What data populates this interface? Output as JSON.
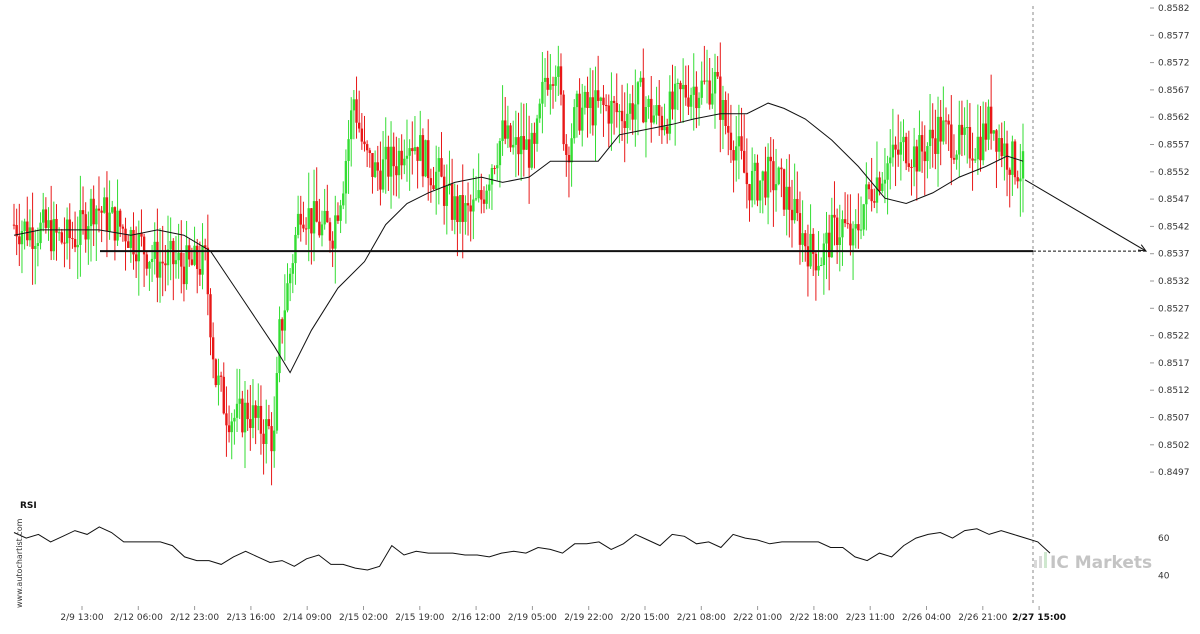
{
  "chart_data": {
    "type": "candlestick",
    "instrument_note": "",
    "price_axis": {
      "ticks": [
        "0.8582",
        "0.8577",
        "0.8572",
        "0.8567",
        "0.8562",
        "0.8557",
        "0.8552",
        "0.8547",
        "0.8542",
        "0.8537",
        "0.8532",
        "0.8527",
        "0.8522",
        "0.8517",
        "0.8512",
        "0.8507",
        "0.8502",
        "0.8497"
      ],
      "range": [
        0.8494,
        0.8582
      ]
    },
    "time_axis": {
      "ticks": [
        "2/9 13:00",
        "2/12 06:00",
        "2/12 23:00",
        "2/13 16:00",
        "2/14 09:00",
        "2/15 02:00",
        "2/15 19:00",
        "2/16 12:00",
        "2/19 05:00",
        "2/19 22:00",
        "2/20 15:00",
        "2/21 08:00",
        "2/22 01:00",
        "2/22 18:00",
        "2/23 11:00",
        "2/26 04:00",
        "2/26 21:00",
        "2/27 15:00"
      ],
      "current_label": "2/27 15:00"
    },
    "support_level": 0.8536,
    "forecast_target": 0.8536,
    "moving_average_path": [
      [
        0,
        0.8539
      ],
      [
        5,
        0.854
      ],
      [
        10,
        0.854
      ],
      [
        16,
        0.854
      ],
      [
        22,
        0.8539
      ],
      [
        27,
        0.854
      ],
      [
        32,
        0.8539
      ],
      [
        37,
        0.8536
      ],
      [
        43,
        0.8527
      ],
      [
        49,
        0.8518
      ],
      [
        52,
        0.8513
      ],
      [
        56,
        0.8521
      ],
      [
        61,
        0.8529
      ],
      [
        66,
        0.8534
      ],
      [
        70,
        0.8541
      ],
      [
        74,
        0.8545
      ],
      [
        78,
        0.8547
      ],
      [
        83,
        0.8549
      ],
      [
        88,
        0.855
      ],
      [
        92,
        0.8549
      ],
      [
        97,
        0.855
      ],
      [
        101,
        0.8553
      ],
      [
        106,
        0.8553
      ],
      [
        110,
        0.8553
      ],
      [
        114,
        0.8558
      ],
      [
        119,
        0.8559
      ],
      [
        124,
        0.856
      ],
      [
        128,
        0.8561
      ],
      [
        133,
        0.8562
      ],
      [
        138,
        0.8562
      ],
      [
        142,
        0.8564
      ],
      [
        145,
        0.8563
      ],
      [
        149,
        0.8561
      ],
      [
        154,
        0.8557
      ],
      [
        159,
        0.8552
      ],
      [
        164,
        0.8546
      ],
      [
        168,
        0.8545
      ],
      [
        173,
        0.8547
      ],
      [
        178,
        0.855
      ],
      [
        183,
        0.8552
      ],
      [
        187,
        0.8554
      ],
      [
        190,
        0.8553
      ]
    ],
    "price_path": [
      [
        0,
        0.8541
      ],
      [
        3,
        0.854
      ],
      [
        6,
        0.854
      ],
      [
        9,
        0.8538
      ],
      [
        12,
        0.8539
      ],
      [
        15,
        0.8545
      ],
      [
        18,
        0.8542
      ],
      [
        21,
        0.854
      ],
      [
        24,
        0.8537
      ],
      [
        27,
        0.8534
      ],
      [
        30,
        0.8534
      ],
      [
        33,
        0.8533
      ],
      [
        36,
        0.8534
      ],
      [
        38,
        0.8512
      ],
      [
        40,
        0.8506
      ],
      [
        42,
        0.8504
      ],
      [
        44,
        0.8506
      ],
      [
        46,
        0.8503
      ],
      [
        48,
        0.8502
      ],
      [
        49,
        0.85
      ],
      [
        50,
        0.852
      ],
      [
        52,
        0.8532
      ],
      [
        54,
        0.8545
      ],
      [
        56,
        0.8542
      ],
      [
        58,
        0.854
      ],
      [
        60,
        0.854
      ],
      [
        62,
        0.855
      ],
      [
        64,
        0.8565
      ],
      [
        66,
        0.8554
      ],
      [
        68,
        0.8551
      ],
      [
        70,
        0.8552
      ],
      [
        72,
        0.8553
      ],
      [
        74,
        0.8558
      ],
      [
        76,
        0.8556
      ],
      [
        78,
        0.8552
      ],
      [
        80,
        0.855
      ],
      [
        82,
        0.8545
      ],
      [
        84,
        0.8543
      ],
      [
        86,
        0.8543
      ],
      [
        88,
        0.8546
      ],
      [
        90,
        0.8553
      ],
      [
        92,
        0.8558
      ],
      [
        94,
        0.8555
      ],
      [
        96,
        0.8556
      ],
      [
        98,
        0.8554
      ],
      [
        100,
        0.8569
      ],
      [
        102,
        0.8572
      ],
      [
        104,
        0.8555
      ],
      [
        106,
        0.8562
      ],
      [
        108,
        0.8563
      ],
      [
        110,
        0.8563
      ],
      [
        112,
        0.8563
      ],
      [
        114,
        0.8562
      ],
      [
        116,
        0.8563
      ],
      [
        118,
        0.8565
      ],
      [
        120,
        0.8562
      ],
      [
        122,
        0.8561
      ],
      [
        124,
        0.8563
      ],
      [
        126,
        0.8566
      ],
      [
        128,
        0.8567
      ],
      [
        130,
        0.8567
      ],
      [
        132,
        0.8568
      ],
      [
        134,
        0.856
      ],
      [
        136,
        0.8556
      ],
      [
        138,
        0.8549
      ],
      [
        140,
        0.8549
      ],
      [
        142,
        0.855
      ],
      [
        144,
        0.8549
      ],
      [
        146,
        0.8545
      ],
      [
        148,
        0.854
      ],
      [
        150,
        0.8536
      ],
      [
        152,
        0.8535
      ],
      [
        154,
        0.8539
      ],
      [
        156,
        0.8541
      ],
      [
        158,
        0.8537
      ],
      [
        160,
        0.8545
      ],
      [
        162,
        0.8549
      ],
      [
        164,
        0.8552
      ],
      [
        166,
        0.8554
      ],
      [
        168,
        0.8556
      ],
      [
        170,
        0.8554
      ],
      [
        172,
        0.8556
      ],
      [
        174,
        0.8559
      ],
      [
        176,
        0.8558
      ],
      [
        178,
        0.8556
      ],
      [
        180,
        0.8556
      ],
      [
        182,
        0.8557
      ],
      [
        184,
        0.8561
      ],
      [
        186,
        0.8556
      ],
      [
        188,
        0.8553
      ],
      [
        190,
        0.8551
      ]
    ],
    "rsi": {
      "title": "RSI",
      "ticks": [
        "60",
        "40"
      ],
      "range": [
        35,
        75
      ],
      "path": [
        [
          0,
          63
        ],
        [
          2,
          60
        ],
        [
          4,
          62
        ],
        [
          6,
          58
        ],
        [
          8,
          61
        ],
        [
          10,
          64
        ],
        [
          12,
          62
        ],
        [
          14,
          66
        ],
        [
          16,
          63
        ],
        [
          18,
          58
        ],
        [
          20,
          58
        ],
        [
          22,
          58
        ],
        [
          24,
          58
        ],
        [
          26,
          56
        ],
        [
          28,
          50
        ],
        [
          30,
          48
        ],
        [
          32,
          48
        ],
        [
          34,
          46
        ],
        [
          36,
          50
        ],
        [
          38,
          53
        ],
        [
          40,
          50
        ],
        [
          42,
          47
        ],
        [
          44,
          48
        ],
        [
          46,
          45
        ],
        [
          48,
          49
        ],
        [
          50,
          51
        ],
        [
          52,
          46
        ],
        [
          54,
          46
        ],
        [
          56,
          44
        ],
        [
          58,
          43
        ],
        [
          60,
          45
        ],
        [
          62,
          56
        ],
        [
          64,
          51
        ],
        [
          66,
          53
        ],
        [
          68,
          52
        ],
        [
          70,
          52
        ],
        [
          72,
          52
        ],
        [
          74,
          51
        ],
        [
          76,
          51
        ],
        [
          78,
          50
        ],
        [
          80,
          52
        ],
        [
          82,
          53
        ],
        [
          84,
          52
        ],
        [
          86,
          55
        ],
        [
          88,
          54
        ],
        [
          90,
          52
        ],
        [
          92,
          57
        ],
        [
          94,
          57
        ],
        [
          96,
          58
        ],
        [
          98,
          54
        ],
        [
          100,
          57
        ],
        [
          102,
          62
        ],
        [
          104,
          59
        ],
        [
          106,
          56
        ],
        [
          108,
          62
        ],
        [
          110,
          61
        ],
        [
          112,
          57
        ],
        [
          114,
          58
        ],
        [
          116,
          55
        ],
        [
          118,
          62
        ],
        [
          120,
          60
        ],
        [
          122,
          59
        ],
        [
          124,
          57
        ],
        [
          126,
          58
        ],
        [
          128,
          58
        ],
        [
          130,
          58
        ],
        [
          132,
          58
        ],
        [
          134,
          55
        ],
        [
          136,
          55
        ],
        [
          138,
          50
        ],
        [
          140,
          48
        ],
        [
          142,
          52
        ],
        [
          144,
          50
        ],
        [
          146,
          56
        ],
        [
          148,
          60
        ],
        [
          150,
          62
        ],
        [
          152,
          63
        ],
        [
          154,
          60
        ],
        [
          156,
          64
        ],
        [
          158,
          65
        ],
        [
          160,
          62
        ],
        [
          162,
          64
        ],
        [
          164,
          62
        ],
        [
          166,
          60
        ],
        [
          168,
          58
        ],
        [
          170,
          52
        ]
      ]
    }
  },
  "labels": {
    "rsi_title": "RSI",
    "side_watermark": "www.autochartist.com",
    "brand": "IC Markets"
  },
  "colors": {
    "up": "#33dd33",
    "down": "#e81818",
    "line": "#111111",
    "support": "#111111",
    "grid": "#dddddd"
  }
}
